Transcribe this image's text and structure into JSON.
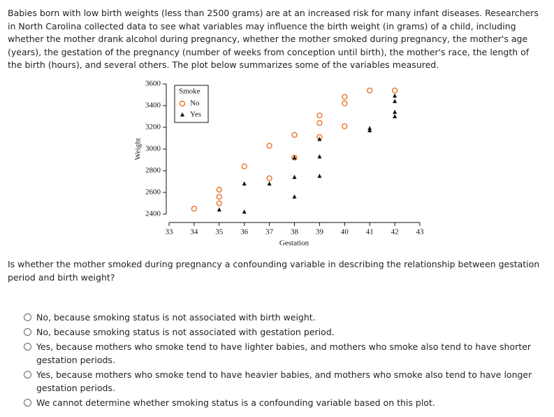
{
  "intro": "Babies born with low birth weights (less than 2500 grams) are at an increased risk for many infant diseases. Researchers in North Carolina collected data to see what variables may influence the birth weight (in grams) of a child, including whether the mother drank alcohol during pregnancy, whether the mother smoked during pregnancy, the mother's age (years), the gestation of the pregnancy (number of weeks from conception until birth), the mother's race, the length of the birth (hours), and several others. The plot below summarizes some of the variables measured.",
  "chart_data": {
    "type": "scatter",
    "x_label": "Gestation",
    "y_label": "Weight",
    "xlim": [
      33,
      43
    ],
    "xticks": [
      33,
      34,
      35,
      36,
      37,
      38,
      39,
      40,
      41,
      42,
      43
    ],
    "ylim": [
      2400,
      3600
    ],
    "yticks": [
      2400,
      2600,
      2800,
      3000,
      3200,
      3400,
      3600
    ],
    "legend_title": "Smoke",
    "legend_position": "upper-left",
    "series": [
      {
        "name": "No",
        "marker": "circle",
        "color": "#e8600a",
        "x": [
          34,
          35,
          35,
          35,
          36,
          37,
          37,
          38,
          38,
          39,
          39,
          39,
          40,
          40,
          40,
          41,
          42
        ],
        "y": [
          2450,
          2625,
          2560,
          2500,
          2840,
          3030,
          2730,
          3130,
          2920,
          3310,
          3240,
          3110,
          3210,
          3480,
          3420,
          3540,
          3540
        ]
      },
      {
        "name": "Yes",
        "marker": "triangle",
        "color": "#111111",
        "x": [
          35,
          36,
          36,
          37,
          38,
          38,
          38,
          39,
          39,
          39,
          41,
          41,
          42,
          42,
          42,
          42
        ],
        "y": [
          2440,
          2420,
          2680,
          2680,
          2920,
          2560,
          2740,
          3090,
          2930,
          2750,
          3190,
          3170,
          3490,
          3440,
          3340,
          3300
        ]
      }
    ]
  },
  "question": "Is whether the mother smoked during pregnancy a confounding variable in describing the relationship between gestation period and birth weight?",
  "options": [
    "No, because smoking status is not associated with birth weight.",
    "No, because smoking status is not associated with gestation period.",
    "Yes, because mothers who smoke tend to have lighter babies, and mothers who smoke also tend to have shorter gestation periods.",
    "Yes, because mothers who smoke tend to have heavier babies, and mothers who smoke also tend to have longer gestation periods.",
    "We cannot determine whether smoking status is a confounding variable based on this plot."
  ]
}
